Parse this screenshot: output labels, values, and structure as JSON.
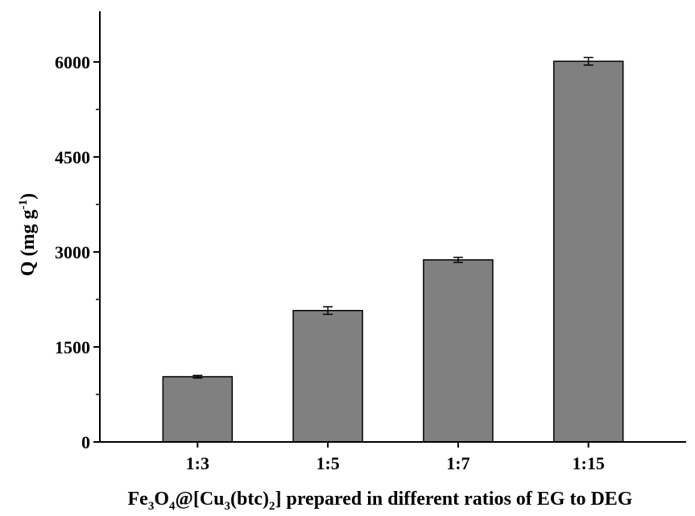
{
  "chart_data": {
    "type": "bar",
    "categories": [
      "1:3",
      "1:5",
      "1:7",
      "1:15"
    ],
    "values": [
      1030,
      2075,
      2875,
      6010
    ],
    "errors": [
      20,
      60,
      40,
      60
    ],
    "title": "",
    "xlabel": {
      "parts": [
        {
          "text": "Fe",
          "sub": false
        },
        {
          "text": "3",
          "sub": true
        },
        {
          "text": "O",
          "sub": false
        },
        {
          "text": "4",
          "sub": true
        },
        {
          "text": "@[Cu",
          "sub": false
        },
        {
          "text": "3",
          "sub": true
        },
        {
          "text": "(btc)",
          "sub": false
        },
        {
          "text": "2",
          "sub": true
        },
        {
          "text": "] prepared in different ratios of EG to DEG",
          "sub": false
        }
      ]
    },
    "ylabel": {
      "main": "Q (mg g",
      "sup": "-1",
      "close": ")"
    },
    "ylim": [
      0,
      6800
    ],
    "yticks": [
      0,
      1500,
      3000,
      4500,
      6000
    ],
    "grid": false,
    "colors": {
      "bar": "#808080",
      "axis": "#000000"
    }
  }
}
